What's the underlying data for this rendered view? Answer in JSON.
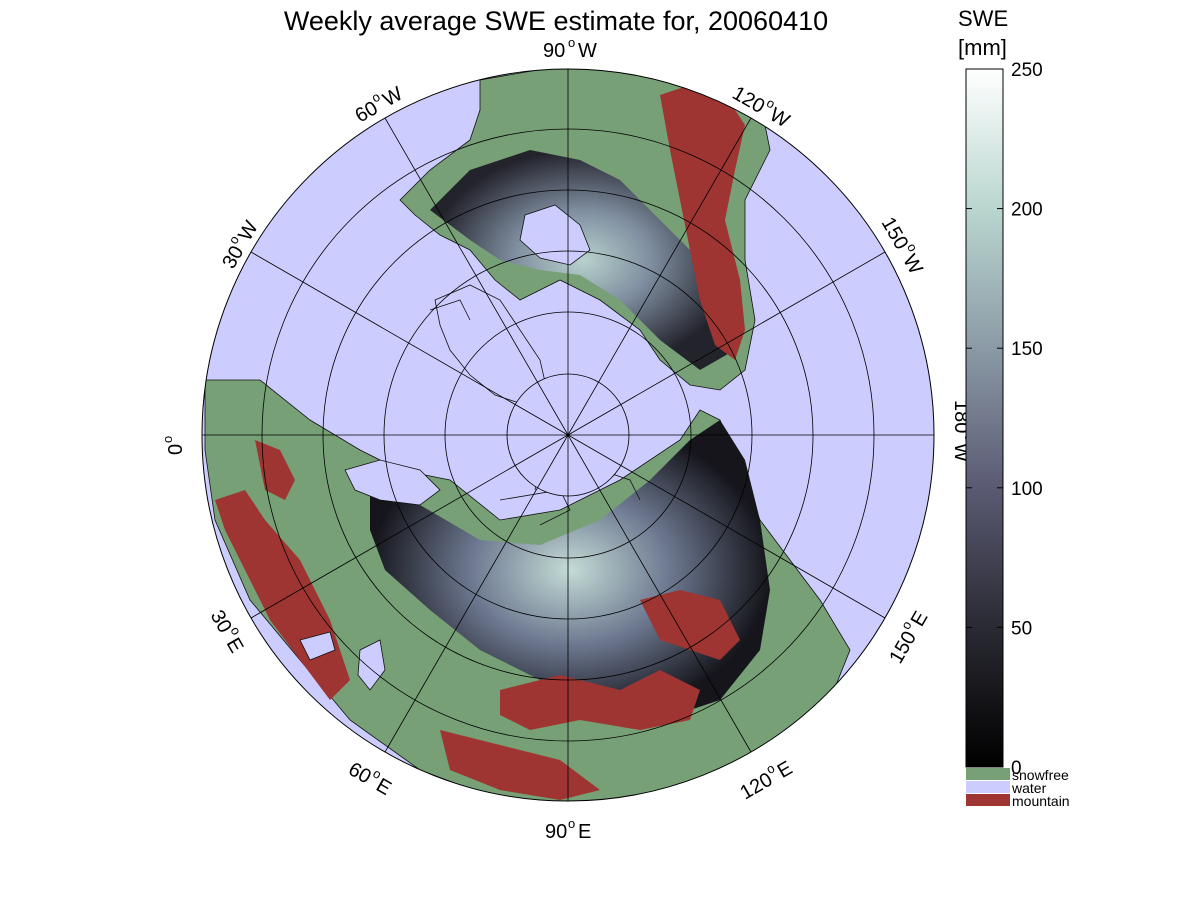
{
  "title": "Weekly average SWE estimate for, 20060410",
  "map": {
    "projection": "north-polar-stereographic",
    "colors": {
      "water": "#ccccff",
      "snowfree": "#77a077",
      "mountain": "#9e3532",
      "coast": "#111111",
      "grid": "#000000"
    },
    "longitude_labels": [
      {
        "deg": "90",
        "hemi": "W",
        "id": "lon-90w"
      },
      {
        "deg": "120",
        "hemi": "W",
        "id": "lon-120w"
      },
      {
        "deg": "150",
        "hemi": "W",
        "id": "lon-150w"
      },
      {
        "deg": "180",
        "hemi": "W",
        "id": "lon-180w"
      },
      {
        "deg": "150",
        "hemi": "E",
        "id": "lon-150e"
      },
      {
        "deg": "120",
        "hemi": "E",
        "id": "lon-120e"
      },
      {
        "deg": "90",
        "hemi": "E",
        "id": "lon-90e"
      },
      {
        "deg": "60",
        "hemi": "E",
        "id": "lon-60e"
      },
      {
        "deg": "30",
        "hemi": "E",
        "id": "lon-30e"
      },
      {
        "deg": "0",
        "hemi": "",
        "id": "lon-0"
      },
      {
        "deg": "30",
        "hemi": "W",
        "id": "lon-30w"
      },
      {
        "deg": "60",
        "hemi": "W",
        "id": "lon-60w"
      }
    ],
    "degree_symbol": "o"
  },
  "colorbar": {
    "title_line1": "SWE",
    "title_line2": "[mm]",
    "range": [
      0,
      250
    ],
    "ticks": [
      "0",
      "50",
      "100",
      "150",
      "200",
      "250"
    ],
    "stops": [
      "#000000",
      "#2a2a33",
      "#5a5a73",
      "#8b9aa6",
      "#b9d6cf",
      "#ffffff"
    ]
  },
  "legend": [
    {
      "label": "snowfree",
      "color": "#77a077"
    },
    {
      "label": "water",
      "color": "#ccccff"
    },
    {
      "label": "mountain",
      "color": "#9e3532"
    }
  ]
}
